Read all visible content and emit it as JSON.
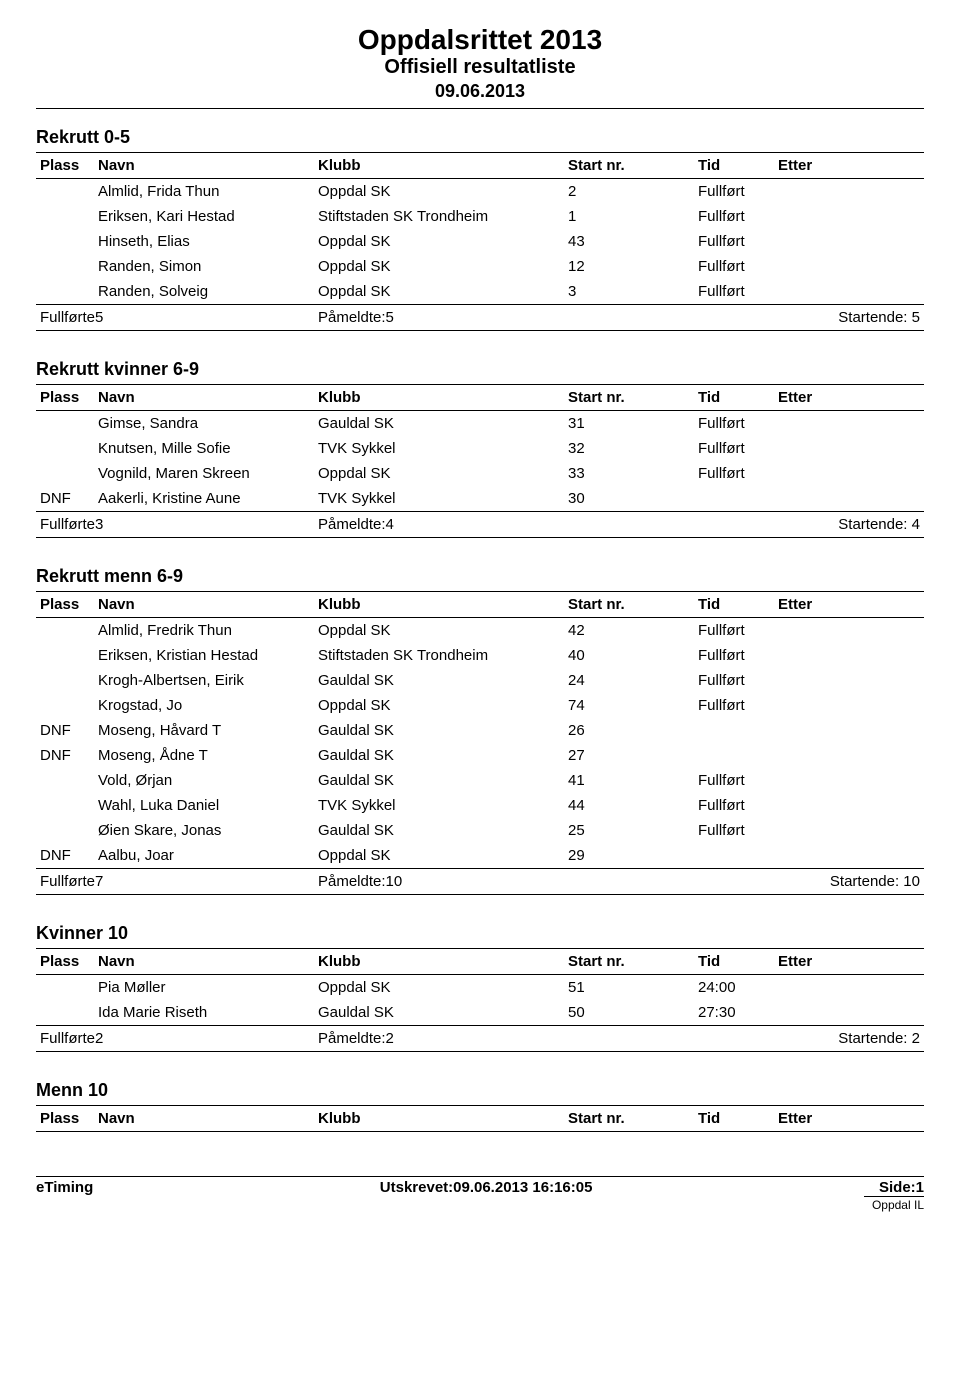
{
  "header": {
    "title": "Oppdalsrittet 2013",
    "subtitle": "Offisiell resultatliste",
    "date": "09.06.2013"
  },
  "columns": {
    "plass": "Plass",
    "navn": "Navn",
    "klubb": "Klubb",
    "start": "Start nr.",
    "tid": "Tid",
    "etter": "Etter"
  },
  "summary_labels": {
    "fullforte": "Fullførte",
    "pameldte": "Påmeldte:",
    "startende": "Startende:"
  },
  "sections": [
    {
      "title": "Rekrutt 0-5",
      "rows": [
        {
          "plass": "",
          "navn": "Almlid, Frida Thun",
          "klubb": "Oppdal SK",
          "start": "2",
          "tid": "Fullført",
          "etter": ""
        },
        {
          "plass": "",
          "navn": "Eriksen, Kari Hestad",
          "klubb": "Stiftstaden SK Trondheim",
          "start": "1",
          "tid": "Fullført",
          "etter": ""
        },
        {
          "plass": "",
          "navn": "Hinseth, Elias",
          "klubb": "Oppdal SK",
          "start": "43",
          "tid": "Fullført",
          "etter": ""
        },
        {
          "plass": "",
          "navn": "Randen, Simon",
          "klubb": "Oppdal SK",
          "start": "12",
          "tid": "Fullført",
          "etter": ""
        },
        {
          "plass": "",
          "navn": "Randen, Solveig",
          "klubb": "Oppdal SK",
          "start": "3",
          "tid": "Fullført",
          "etter": ""
        }
      ],
      "summary": {
        "fullforte": "5",
        "pameldte": "5",
        "startende": "5"
      }
    },
    {
      "title": "Rekrutt kvinner 6-9",
      "rows": [
        {
          "plass": "",
          "navn": "Gimse, Sandra",
          "klubb": "Gauldal SK",
          "start": "31",
          "tid": "Fullført",
          "etter": ""
        },
        {
          "plass": "",
          "navn": "Knutsen, Mille Sofie",
          "klubb": "TVK Sykkel",
          "start": "32",
          "tid": "Fullført",
          "etter": ""
        },
        {
          "plass": "",
          "navn": "Vognild, Maren Skreen",
          "klubb": "Oppdal SK",
          "start": "33",
          "tid": "Fullført",
          "etter": ""
        },
        {
          "plass": "DNF",
          "navn": "Aakerli, Kristine Aune",
          "klubb": "TVK Sykkel",
          "start": "30",
          "tid": "",
          "etter": ""
        }
      ],
      "summary": {
        "fullforte": "3",
        "pameldte": "4",
        "startende": "4"
      }
    },
    {
      "title": "Rekrutt menn 6-9",
      "rows": [
        {
          "plass": "",
          "navn": "Almlid, Fredrik Thun",
          "klubb": "Oppdal SK",
          "start": "42",
          "tid": "Fullført",
          "etter": ""
        },
        {
          "plass": "",
          "navn": "Eriksen, Kristian Hestad",
          "klubb": "Stiftstaden SK Trondheim",
          "start": "40",
          "tid": "Fullført",
          "etter": ""
        },
        {
          "plass": "",
          "navn": "Krogh-Albertsen, Eirik",
          "klubb": "Gauldal SK",
          "start": "24",
          "tid": "Fullført",
          "etter": ""
        },
        {
          "plass": "",
          "navn": "Krogstad, Jo",
          "klubb": "Oppdal SK",
          "start": "74",
          "tid": "Fullført",
          "etter": ""
        },
        {
          "plass": "DNF",
          "navn": "Moseng, Håvard T",
          "klubb": "Gauldal SK",
          "start": "26",
          "tid": "",
          "etter": ""
        },
        {
          "plass": "DNF",
          "navn": "Moseng, Ådne T",
          "klubb": "Gauldal SK",
          "start": "27",
          "tid": "",
          "etter": ""
        },
        {
          "plass": "",
          "navn": "Vold, Ørjan",
          "klubb": "Gauldal SK",
          "start": "41",
          "tid": "Fullført",
          "etter": ""
        },
        {
          "plass": "",
          "navn": "Wahl, Luka Daniel",
          "klubb": "TVK Sykkel",
          "start": "44",
          "tid": "Fullført",
          "etter": ""
        },
        {
          "plass": "",
          "navn": "Øien Skare, Jonas",
          "klubb": "Gauldal SK",
          "start": "25",
          "tid": "Fullført",
          "etter": ""
        },
        {
          "plass": "DNF",
          "navn": "Aalbu, Joar",
          "klubb": "Oppdal SK",
          "start": "29",
          "tid": "",
          "etter": ""
        }
      ],
      "summary": {
        "fullforte": "7",
        "pameldte": "10",
        "startende": "10"
      }
    },
    {
      "title": "Kvinner 10",
      "rows": [
        {
          "plass": "",
          "navn": "Pia Møller",
          "klubb": "Oppdal SK",
          "start": "51",
          "tid": "24:00",
          "etter": ""
        },
        {
          "plass": "",
          "navn": "Ida Marie Riseth",
          "klubb": "Gauldal SK",
          "start": "50",
          "tid": "27:30",
          "etter": ""
        }
      ],
      "summary": {
        "fullforte": "2",
        "pameldte": "2",
        "startende": "2"
      }
    },
    {
      "title": "Menn 10",
      "rows": [],
      "summary": null
    }
  ],
  "footer": {
    "left": "eTiming",
    "center": "Utskrevet:09.06.2013 16:16:05",
    "right": "Side:1",
    "sub": "Oppdal IL"
  }
}
